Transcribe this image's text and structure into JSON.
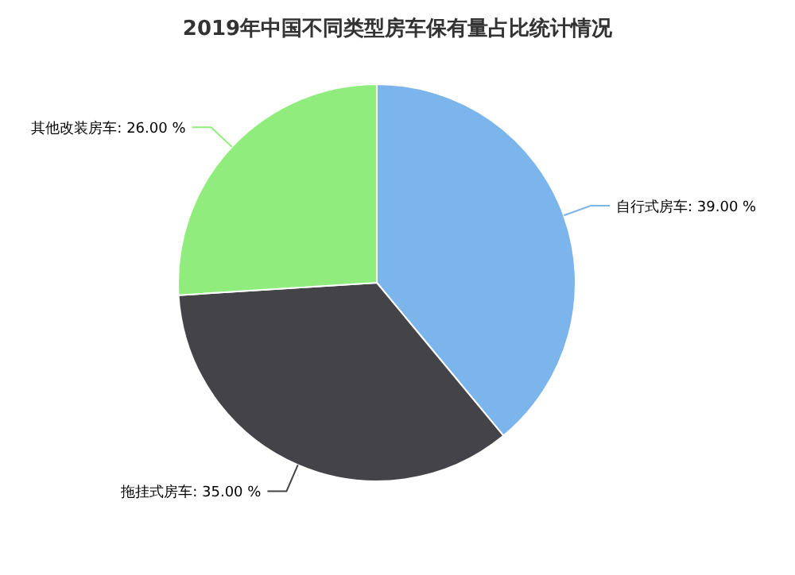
{
  "chart_data": {
    "type": "pie",
    "title": "2019年中国不同类型房车保有量占比统计情况",
    "categories": [
      "自行式房车",
      "拖挂式房车",
      "其他改装房车"
    ],
    "values": [
      39,
      35,
      26
    ],
    "value_labels": [
      "39.00 %",
      "35.00 %",
      "26.00 %"
    ],
    "colors": [
      "#7cb5ec",
      "#434348",
      "#90ed7d"
    ]
  }
}
